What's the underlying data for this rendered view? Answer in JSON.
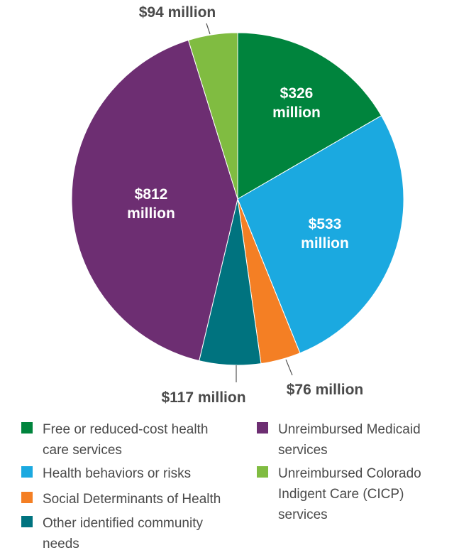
{
  "chart_data": {
    "type": "pie",
    "unit": "million",
    "slices": [
      {
        "label": "Free or reduced-cost health care services",
        "value": 326,
        "display": "$326 million",
        "color": "#00843d"
      },
      {
        "label": "Health behaviors or risks",
        "value": 533,
        "display": "$533 million",
        "color": "#1ba9e0"
      },
      {
        "label": "Social Determinants of Health",
        "value": 76,
        "display": "$76 million",
        "color": "#f47f24"
      },
      {
        "label": "Other identified community needs",
        "value": 117,
        "display": "$117 million",
        "color": "#00737f"
      },
      {
        "label": "Unreimbursed Medicaid services",
        "value": 812,
        "display": "$812 million",
        "color": "#6d2e72"
      },
      {
        "label": "Unreimbursed Colorado Indigent Care (CICP) services",
        "value": 94,
        "display": "$94 million",
        "color": "#80bc41"
      }
    ],
    "slice_labels": {
      "326": [
        "$326",
        "million"
      ],
      "533": [
        "$533",
        "million"
      ],
      "812": [
        "$812",
        "million"
      ],
      "76": [
        "$76 million"
      ],
      "117": [
        "$117 million"
      ],
      "94": [
        "$94 million"
      ]
    },
    "legend": {
      "items": [
        {
          "lines": [
            "Free or reduced-cost health",
            "care services"
          ],
          "color": "#00843d"
        },
        {
          "lines": [
            "Health behaviors or risks"
          ],
          "color": "#1ba9e0"
        },
        {
          "lines": [
            "Social Determinants of Health"
          ],
          "color": "#f47f24"
        },
        {
          "lines": [
            "Other identified community",
            "needs"
          ],
          "color": "#00737f"
        },
        {
          "lines": [
            "Unreimbursed Medicaid",
            "services"
          ],
          "color": "#6d2e72"
        },
        {
          "lines": [
            "Unreimbursed Colorado",
            "Indigent Care (CICP)",
            "services"
          ],
          "color": "#80bc41"
        }
      ],
      "placement": "bottom"
    }
  }
}
